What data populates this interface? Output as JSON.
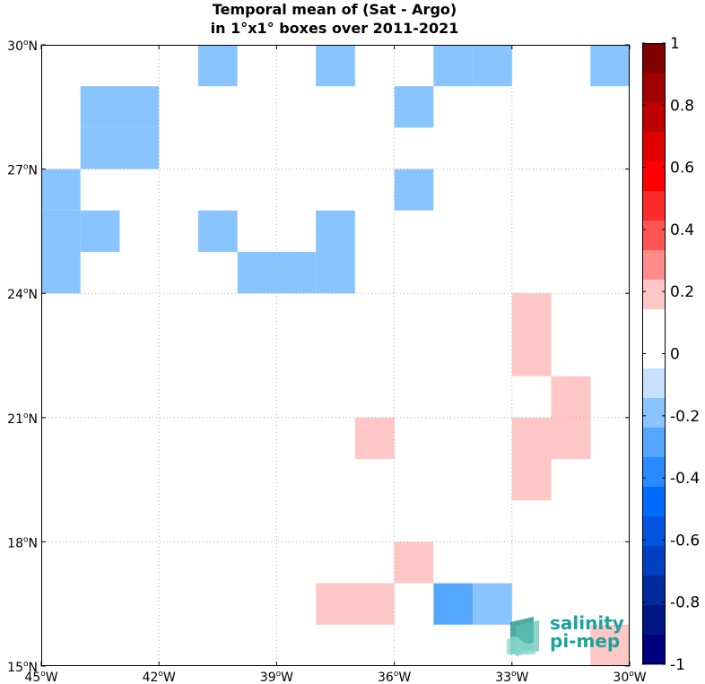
{
  "title": {
    "line1": "Temporal mean of (Sat - Argo)",
    "line2": "in 1°x1° boxes over 2011-2021"
  },
  "chart_data": {
    "type": "heatmap",
    "title": "Temporal mean of (Sat - Argo) in 1°x1° boxes over 2011-2021",
    "xlim": [
      -45,
      -30
    ],
    "ylim": [
      15,
      30
    ],
    "grid": true,
    "x_ticks": [
      {
        "value": -45,
        "label": "45",
        "hemi": "W"
      },
      {
        "value": -42,
        "label": "42",
        "hemi": "W"
      },
      {
        "value": -39,
        "label": "39",
        "hemi": "W"
      },
      {
        "value": -36,
        "label": "36",
        "hemi": "W"
      },
      {
        "value": -33,
        "label": "33",
        "hemi": "W"
      },
      {
        "value": -30,
        "label": "30",
        "hemi": "W"
      }
    ],
    "y_ticks": [
      {
        "value": 30,
        "label": "30",
        "hemi": "N"
      },
      {
        "value": 27,
        "label": "27",
        "hemi": "N"
      },
      {
        "value": 24,
        "label": "24",
        "hemi": "N"
      },
      {
        "value": 21,
        "label": "21",
        "hemi": "N"
      },
      {
        "value": 18,
        "label": "18",
        "hemi": "N"
      },
      {
        "value": 15,
        "label": "15",
        "hemi": "N"
      }
    ],
    "degree_symbol": "o",
    "colorbar": {
      "range": [
        -1,
        1
      ],
      "step": 0.1,
      "tick_labels": [
        "1",
        "0.8",
        "0.6",
        "0.4",
        "0.2",
        "0",
        "-0.2",
        "-0.4",
        "-0.6",
        "-0.8",
        "-1"
      ],
      "colors_top_to_bottom": [
        "#7f0000",
        "#9f0000",
        "#bf0000",
        "#df0000",
        "#ff0000",
        "#ff2a2a",
        "#ff5555",
        "#ff8a8a",
        "#ffc6c6",
        "#ffffff",
        "#ffffff",
        "#c6e0ff",
        "#8ac4ff",
        "#55a6ff",
        "#2a8aff",
        "#006cff",
        "#0054e0",
        "#0040c0",
        "#002aa0",
        "#001680",
        "#000080"
      ]
    },
    "cells": [
      {
        "lon": -41,
        "lat": 29,
        "value": -0.15
      },
      {
        "lon": -38,
        "lat": 29,
        "value": -0.15
      },
      {
        "lon": -35,
        "lat": 29,
        "value": -0.15
      },
      {
        "lon": -34,
        "lat": 29,
        "value": -0.15
      },
      {
        "lon": -31,
        "lat": 29,
        "value": -0.15
      },
      {
        "lon": -44,
        "lat": 28,
        "value": -0.15
      },
      {
        "lon": -43,
        "lat": 28,
        "value": -0.15
      },
      {
        "lon": -36,
        "lat": 28,
        "value": -0.15
      },
      {
        "lon": -44,
        "lat": 27,
        "value": -0.15
      },
      {
        "lon": -43,
        "lat": 27,
        "value": -0.15
      },
      {
        "lon": -45,
        "lat": 26,
        "value": -0.15
      },
      {
        "lon": -36,
        "lat": 26,
        "value": -0.15
      },
      {
        "lon": -45,
        "lat": 25,
        "value": -0.15
      },
      {
        "lon": -44,
        "lat": 25,
        "value": -0.15
      },
      {
        "lon": -41,
        "lat": 25,
        "value": -0.15
      },
      {
        "lon": -38,
        "lat": 25,
        "value": -0.15
      },
      {
        "lon": -45,
        "lat": 24,
        "value": -0.15
      },
      {
        "lon": -40,
        "lat": 24,
        "value": -0.15
      },
      {
        "lon": -39,
        "lat": 24,
        "value": -0.15
      },
      {
        "lon": -38,
        "lat": 24,
        "value": -0.15
      },
      {
        "lon": -33,
        "lat": 23,
        "value": 0.15
      },
      {
        "lon": -33,
        "lat": 22,
        "value": 0.15
      },
      {
        "lon": -32,
        "lat": 21,
        "value": 0.15
      },
      {
        "lon": -37,
        "lat": 20,
        "value": 0.15
      },
      {
        "lon": -33,
        "lat": 20,
        "value": 0.15
      },
      {
        "lon": -32,
        "lat": 20,
        "value": 0.15
      },
      {
        "lon": -33,
        "lat": 19,
        "value": 0.15
      },
      {
        "lon": -36,
        "lat": 17,
        "value": 0.15
      },
      {
        "lon": -38,
        "lat": 16,
        "value": 0.15
      },
      {
        "lon": -37,
        "lat": 16,
        "value": 0.15
      },
      {
        "lon": -35,
        "lat": 16,
        "value": -0.25
      },
      {
        "lon": -34,
        "lat": 16,
        "value": -0.15
      },
      {
        "lon": -31,
        "lat": 15,
        "value": 0.15
      }
    ]
  },
  "logo": {
    "line1": "salinity",
    "line2": "pi-mep",
    "color": "#1aa39a"
  }
}
